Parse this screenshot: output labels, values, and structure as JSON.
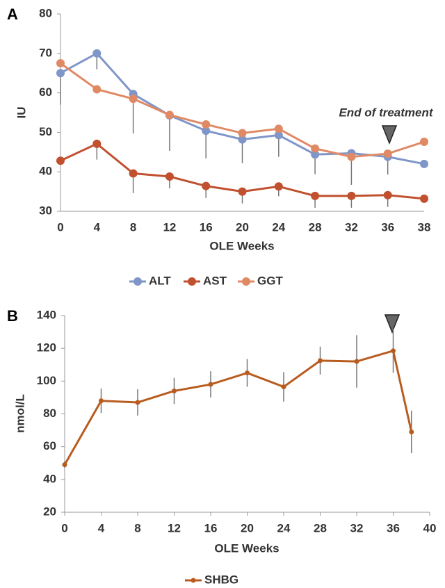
{
  "chart_data": [
    {
      "type": "line",
      "panel_label": "A",
      "y_label": "IU",
      "x_label": "OLE Weeks",
      "categories": [
        "0",
        "4",
        "8",
        "12",
        "16",
        "20",
        "24",
        "28",
        "32",
        "36",
        "38"
      ],
      "ylim": [
        30,
        80
      ],
      "yticks": [
        30,
        40,
        50,
        60,
        70,
        80
      ],
      "error_bars": "lower",
      "legend": "bottom",
      "annotation": "End of treatment",
      "series": [
        {
          "name": "ALT",
          "color": "#7f96c8",
          "values": [
            65,
            70,
            59.7,
            54.3,
            50.4,
            48.2,
            49.3,
            44.4,
            44.7,
            43.8,
            42
          ],
          "errors": [
            8,
            4,
            10,
            9,
            7,
            6,
            5.5,
            5,
            8,
            4.5,
            null
          ]
        },
        {
          "name": "AST",
          "color": "#c0502e",
          "values": [
            42.8,
            47.1,
            39.6,
            38.8,
            36.4,
            35,
            36.3,
            33.9,
            33.9,
            34.1,
            33.2
          ],
          "errors": [
            null,
            4,
            5,
            3,
            3,
            3,
            2.5,
            3,
            3,
            3,
            null
          ]
        },
        {
          "name": "GGT",
          "color": "#e08a65",
          "values": [
            67.5,
            60.9,
            58.5,
            54.4,
            52,
            49.8,
            50.9,
            45.9,
            43.8,
            44.6,
            47.6
          ]
        }
      ]
    },
    {
      "type": "line",
      "panel_label": "B",
      "y_label": "nmol/L",
      "x_label": "OLE Weeks",
      "x": [
        0,
        4,
        8,
        12,
        16,
        20,
        24,
        28,
        32,
        36,
        38
      ],
      "xlim": [
        0,
        40
      ],
      "xticks": [
        0,
        4,
        8,
        12,
        16,
        20,
        24,
        28,
        32,
        36,
        40
      ],
      "ylim": [
        20,
        140
      ],
      "yticks": [
        20,
        40,
        60,
        80,
        100,
        120,
        140
      ],
      "error_bars": "both",
      "legend": "bottom",
      "series": [
        {
          "name": "SHBG",
          "color": "#b85c1e",
          "values": [
            49,
            88,
            87,
            94,
            98,
            105,
            96.5,
            112.5,
            112,
            118.5,
            69
          ],
          "errors": [
            2,
            7.5,
            8,
            8,
            8,
            8.5,
            9,
            8.5,
            16,
            13.5,
            13
          ]
        }
      ]
    }
  ]
}
